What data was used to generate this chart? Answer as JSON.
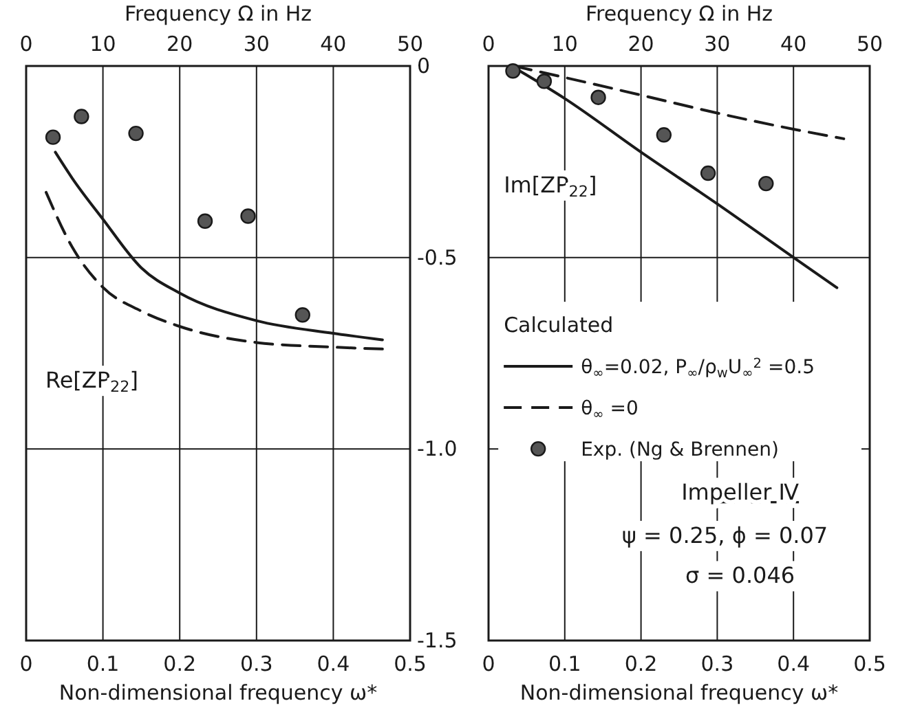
{
  "chart_data": [
    {
      "type": "line",
      "x2label": "Frequency Ω in Hz",
      "xlabel": "Non-dimensional frequency ω*",
      "xlim": [
        0,
        0.5
      ],
      "xticks": [
        0,
        0.1,
        0.2,
        0.3,
        0.4,
        0.5
      ],
      "x2lim": [
        0,
        50
      ],
      "x2ticks": [
        0,
        10,
        20,
        30,
        40,
        50
      ],
      "ylim": [
        -1.5,
        0
      ],
      "yticks": [
        0,
        -0.5,
        {
          "value": -1.0,
          "label": "-1.0"
        },
        -1.5
      ],
      "grid": true,
      "annotations": [
        "Re[ZP$_{22}$]"
      ],
      "series": [
        {
          "type": "line",
          "color": "#1a1a1a",
          "line_style": "solid",
          "marker": "none",
          "x": [
            0.038,
            0.06,
            0.1,
            0.15,
            0.2,
            0.3,
            0.4,
            0.464
          ],
          "values": [
            -0.225,
            -0.293,
            -0.4,
            -0.527,
            -0.593,
            -0.665,
            -0.698,
            -0.715
          ]
        },
        {
          "type": "line",
          "color": "#1a1a1a",
          "line_style": "dashed",
          "marker": "none",
          "x": [
            0.026,
            0.06,
            0.1,
            0.15,
            0.2,
            0.3,
            0.4,
            0.464
          ],
          "values": [
            -0.33,
            -0.473,
            -0.578,
            -0.64,
            -0.68,
            -0.722,
            -0.734,
            -0.739
          ]
        },
        {
          "type": "scatter",
          "color": "#555555",
          "marker": "circle",
          "x": [
            0.035,
            0.072,
            0.143,
            0.233,
            0.289,
            0.36
          ],
          "values": [
            -0.186,
            -0.132,
            -0.176,
            -0.405,
            -0.392,
            -0.65
          ]
        }
      ]
    },
    {
      "type": "line",
      "x2label": "Frequency Ω in Hz",
      "xlabel": "Non-dimensional frequency ω*",
      "xlim": [
        0,
        0.5
      ],
      "xticks": [
        0,
        0.1,
        0.2,
        0.3,
        0.4,
        0.5
      ],
      "x2lim": [
        0,
        50
      ],
      "x2ticks": [
        0,
        10,
        20,
        30,
        40,
        50
      ],
      "ylim": [
        -1.5,
        0
      ],
      "yticks": [
        0,
        -0.5,
        -1,
        -1.5
      ],
      "tick_labels": "x",
      "grid": true,
      "legend": "left",
      "legend_title": "Calculated",
      "annotations": [
        "Im[ZP$_{22}$]",
        "Impeller Ⅳ",
        "ψ = 0.25, ϕ = 0.07",
        "σ = 0.046"
      ],
      "series": [
        {
          "type": "line",
          "name": "θ$_{∞}$=0.02, P$_{∞}$/ρ$_{w}$U$_{∞}$$^{2}$ =0.5",
          "color": "#1a1a1a",
          "line_style": "solid",
          "marker": "none",
          "x": [
            0.03,
            0.1,
            0.2,
            0.3,
            0.4,
            0.457
          ],
          "values": [
            0,
            -0.085,
            -0.225,
            -0.36,
            -0.5,
            -0.579
          ]
        },
        {
          "type": "line",
          "name": "θ$_{∞}$ =0",
          "color": "#1a1a1a",
          "line_style": "dashed",
          "marker": "none",
          "x": [
            0.033,
            0.1,
            0.2,
            0.3,
            0.4,
            0.466
          ],
          "values": [
            0,
            -0.03,
            -0.076,
            -0.123,
            -0.165,
            -0.19
          ]
        },
        {
          "type": "scatter",
          "name": "Exp. (Ng & Brennen)",
          "color": "#555555",
          "marker": "circle",
          "x": [
            0.032,
            0.073,
            0.144,
            0.23,
            0.288,
            0.364
          ],
          "values": [
            -0.013,
            -0.04,
            -0.082,
            -0.18,
            -0.28,
            -0.307
          ]
        }
      ]
    }
  ]
}
